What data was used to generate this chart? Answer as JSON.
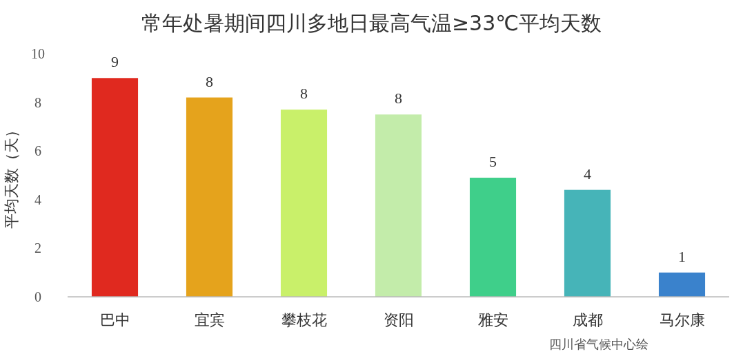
{
  "chart_data": {
    "type": "bar",
    "title": "常年处暑期间四川多地日最高气温≥33℃平均天数",
    "ylabel": "平均天数（天）",
    "categories": [
      "巴中",
      "宜宾",
      "攀枝花",
      "资阳",
      "雅安",
      "成都",
      "马尔康"
    ],
    "values": [
      9.0,
      8.2,
      7.7,
      7.5,
      4.9,
      4.4,
      1.0
    ],
    "value_labels": [
      "9",
      "8",
      "8",
      "8",
      "5",
      "4",
      "1"
    ],
    "colors": [
      "#e0291f",
      "#e5a31c",
      "#c9f06a",
      "#c3ecaa",
      "#3fcf8a",
      "#46b4b8",
      "#3a82cc"
    ],
    "ylim": [
      0,
      10
    ],
    "yticks": [
      0,
      2,
      4,
      6,
      8,
      10
    ],
    "grid": false,
    "annotations": [
      "四川省气候中心绘"
    ]
  }
}
